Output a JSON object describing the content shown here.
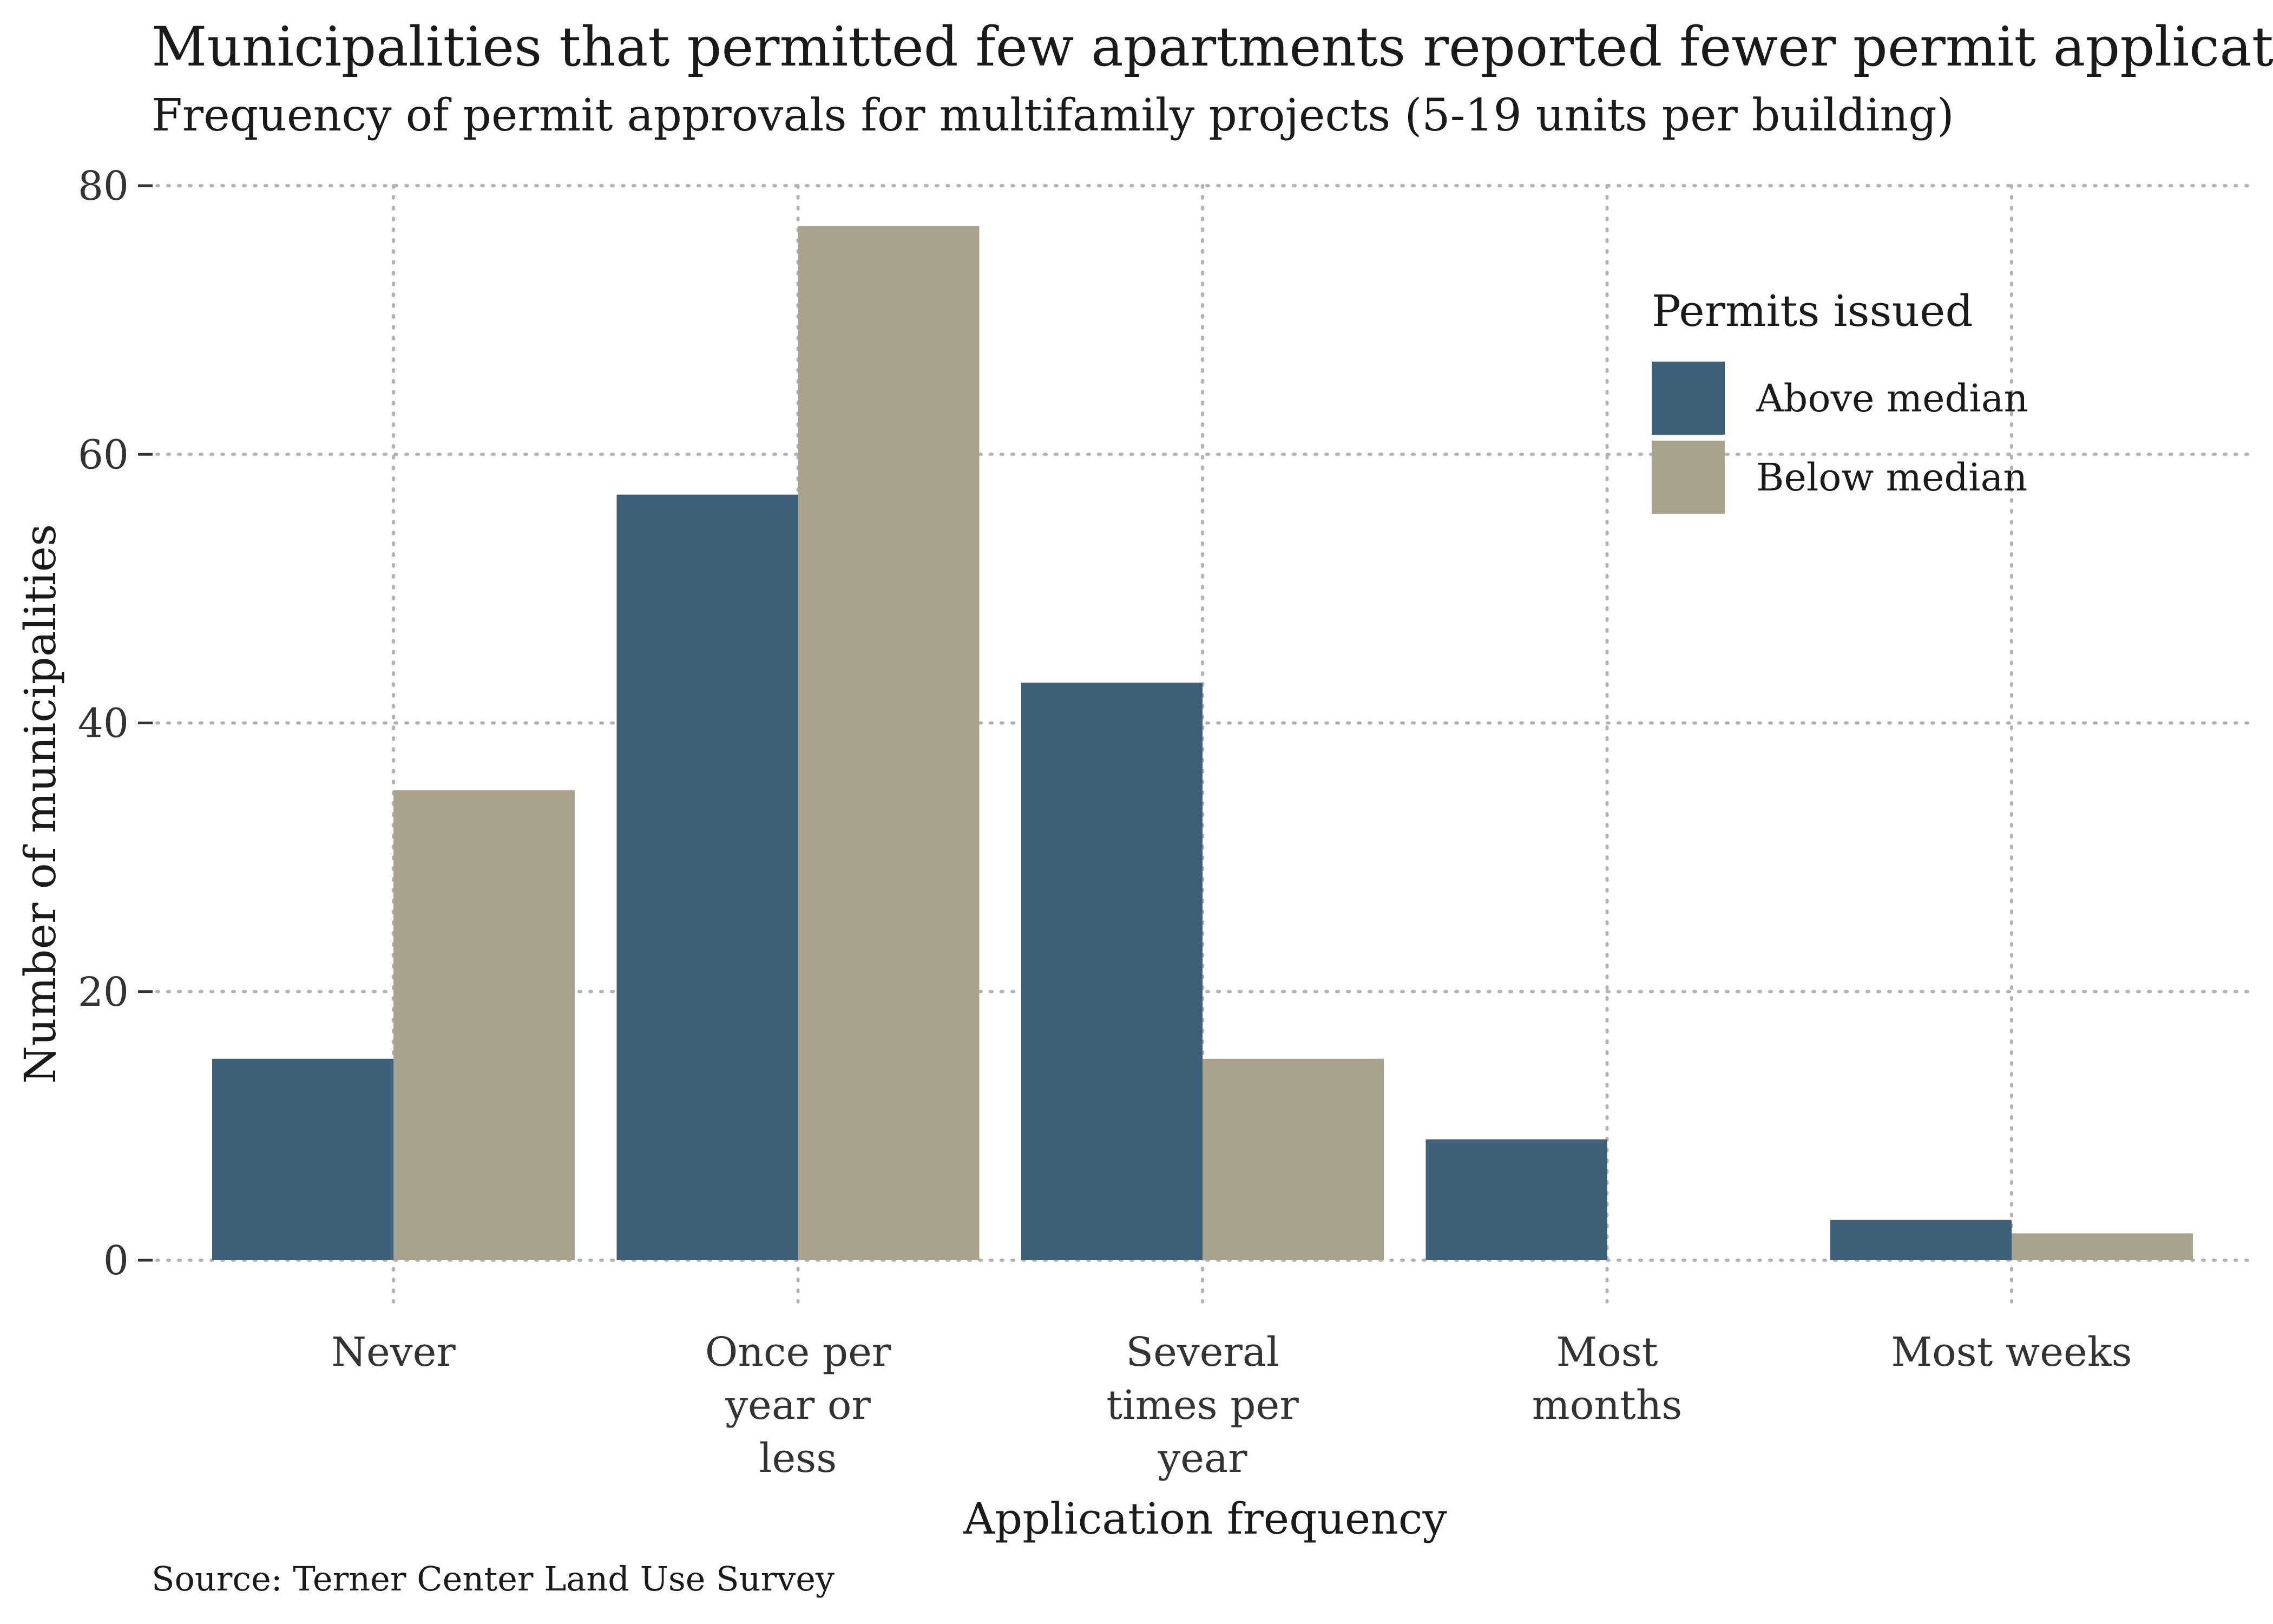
{
  "header": {
    "title": "Municipalities that permitted few apartments reported fewer permit applications",
    "subtitle": "Frequency of permit approvals for multifamily projects (5-19 units per building)"
  },
  "footer": {
    "source": "Source: Terner Center Land Use Survey"
  },
  "chart_data": {
    "type": "bar",
    "title": "Municipalities that permitted few apartments reported fewer permit applications",
    "subtitle": "Frequency of permit approvals for multifamily projects (5-19 units per building)",
    "xlabel": "Application frequency",
    "ylabel": "Number of municipalities",
    "categories": [
      [
        "Never"
      ],
      [
        "Once per",
        "year or",
        "less"
      ],
      [
        "Several",
        "times per",
        "year"
      ],
      [
        "Most",
        "months"
      ],
      [
        "Most weeks"
      ]
    ],
    "series": [
      {
        "name": "Above median",
        "color": "#3e5f78",
        "values": [
          15,
          57,
          43,
          9,
          3
        ]
      },
      {
        "name": "Below median",
        "color": "#a8a38c",
        "values": [
          35,
          77,
          15,
          0,
          2
        ]
      }
    ],
    "ylim": [
      0,
      80
    ],
    "yticks": [
      0,
      20,
      40,
      60,
      80
    ],
    "grid": true,
    "legend": {
      "title": "Permits issued",
      "placement": "top-right"
    }
  }
}
